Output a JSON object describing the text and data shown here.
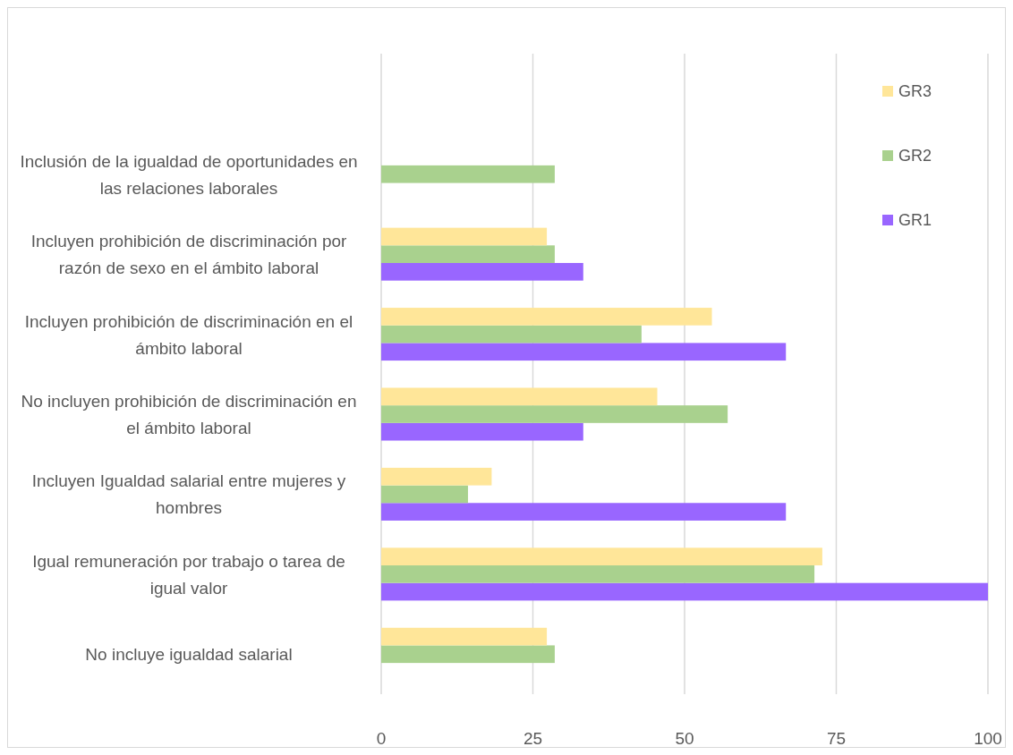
{
  "chart_data": {
    "type": "bar",
    "orientation": "horizontal",
    "categories": [
      "Inclusión de la igualdad de oportunidades en las relaciones laborales",
      "Incluyen prohibición de discriminación por razón de sexo en el ámbito laboral",
      "Incluyen prohibición de discriminación en el ámbito laboral",
      "No incluyen prohibición de discriminación en el ámbito laboral",
      "Incluyen Igualdad salarial entre mujeres y hombres",
      "Igual remuneración por trabajo o tarea de igual valor",
      "No incluye igualdad salarial"
    ],
    "series": [
      {
        "name": "GR1",
        "color": "#9966ff",
        "values": [
          null,
          33.3,
          66.7,
          33.3,
          66.7,
          100,
          null
        ]
      },
      {
        "name": "GR2",
        "color": "#a9d18e",
        "values": [
          28.6,
          28.6,
          42.9,
          57.1,
          14.3,
          71.4,
          28.6
        ]
      },
      {
        "name": "GR3",
        "color": "#ffe699",
        "values": [
          null,
          27.3,
          54.5,
          45.5,
          18.2,
          72.7,
          27.3
        ]
      }
    ],
    "xlim": [
      0,
      100
    ],
    "xticks": [
      0,
      25,
      50,
      75,
      100
    ],
    "grid": "x",
    "legend": "top right"
  }
}
